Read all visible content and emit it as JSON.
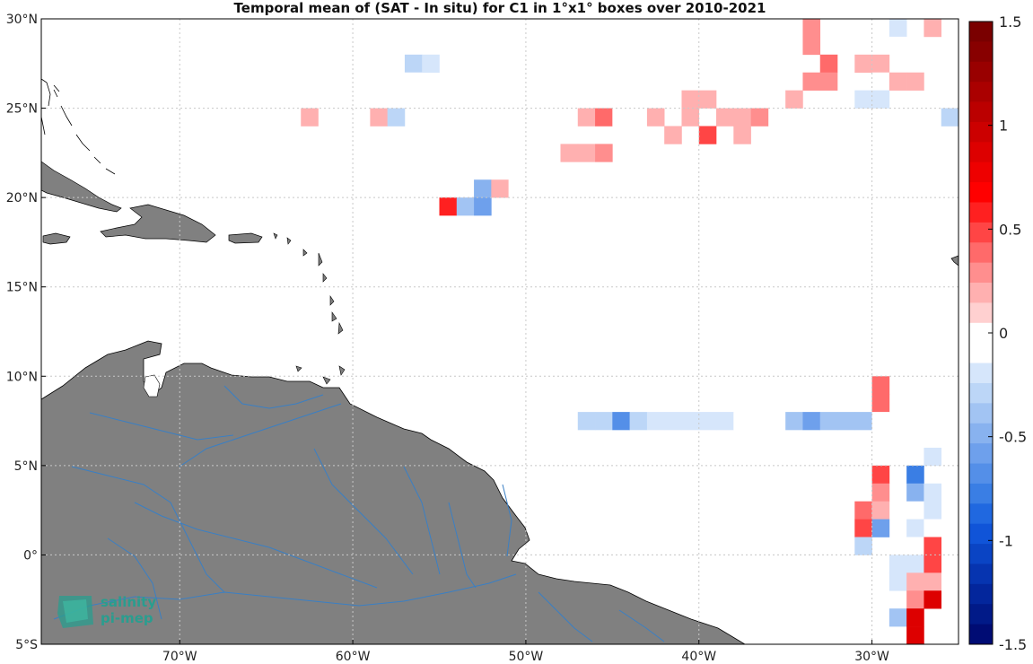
{
  "title": "Temporal mean of (SAT - In situ) for C1 in 1°x1° boxes over 2010-2021",
  "logo": {
    "line1": "salinity",
    "line2": "pi-mep"
  },
  "map": {
    "lon_range": [
      -78,
      -25
    ],
    "lat_range": [
      -5,
      30
    ],
    "lat_ticks": [
      {
        "value": 30,
        "label": "30°N"
      },
      {
        "value": 25,
        "label": "25°N"
      },
      {
        "value": 20,
        "label": "20°N"
      },
      {
        "value": 15,
        "label": "15°N"
      },
      {
        "value": 10,
        "label": "10°N"
      },
      {
        "value": 5,
        "label": "5°N"
      },
      {
        "value": 0,
        "label": "0°"
      },
      {
        "value": -5,
        "label": "5°S"
      }
    ],
    "lon_ticks": [
      {
        "value": -70,
        "label": "70°W"
      },
      {
        "value": -60,
        "label": "60°W"
      },
      {
        "value": -50,
        "label": "50°W"
      },
      {
        "value": -40,
        "label": "40°W"
      },
      {
        "value": -30,
        "label": "30°W"
      }
    ],
    "grid": true,
    "land_color": "#808080",
    "river_color": "#3a7fc4"
  },
  "colorbar": {
    "range": [
      -1.5,
      1.5
    ],
    "ticks": [
      {
        "value": 1.5,
        "label": "1.5"
      },
      {
        "value": 1,
        "label": "1"
      },
      {
        "value": 0.5,
        "label": "0.5"
      },
      {
        "value": 0,
        "label": "0"
      },
      {
        "value": -0.5,
        "label": "-0.5"
      },
      {
        "value": -1,
        "label": "-1"
      },
      {
        "value": -1.5,
        "label": "-1.5"
      }
    ],
    "colors_top_to_bottom": [
      "#7a0000",
      "#880000",
      "#990000",
      "#aa0000",
      "#bb0000",
      "#cc0000",
      "#dd0000",
      "#ee0000",
      "#ff0000",
      "#ff2020",
      "#ff4545",
      "#ff6a6a",
      "#ff8e8e",
      "#ffb0b0",
      "#ffd0d0",
      "#ffffff",
      "#ffffff",
      "#d6e6fb",
      "#bcd6f7",
      "#a2c4f3",
      "#88b2ef",
      "#6ea0ec",
      "#548fe8",
      "#3a7ee4",
      "#2068e0",
      "#1054d8",
      "#0a44c4",
      "#0634b0",
      "#03269c",
      "#011a88",
      "#000c74"
    ]
  },
  "chart_data": {
    "type": "heatmap",
    "description_units": "lon/lat box centers in degrees, value = SAT - In situ (psu)",
    "cells": [
      {
        "lon": -33.5,
        "lat": 29.5,
        "v": 0.25
      },
      {
        "lon": -28.5,
        "lat": 29.5,
        "v": -0.2
      },
      {
        "lon": -26.5,
        "lat": 29.5,
        "v": 0.15
      },
      {
        "lon": -33.5,
        "lat": 28.5,
        "v": 0.25
      },
      {
        "lon": -28.5,
        "lat": 28.5,
        "v": -0.1
      },
      {
        "lon": -56.5,
        "lat": 27.5,
        "v": -0.25
      },
      {
        "lon": -55.5,
        "lat": 27.5,
        "v": -0.15
      },
      {
        "lon": -32.5,
        "lat": 27.5,
        "v": 0.4
      },
      {
        "lon": -30.5,
        "lat": 27.5,
        "v": 0.15
      },
      {
        "lon": -29.5,
        "lat": 27.5,
        "v": 0.15
      },
      {
        "lon": -57.5,
        "lat": 26.5,
        "v": -0.1
      },
      {
        "lon": -56.5,
        "lat": 26.5,
        "v": -0.1
      },
      {
        "lon": -35.5,
        "lat": 26.5,
        "v": -0.1
      },
      {
        "lon": -33.5,
        "lat": 26.5,
        "v": 0.25
      },
      {
        "lon": -32.5,
        "lat": 26.5,
        "v": 0.25
      },
      {
        "lon": -29.5,
        "lat": 26.5,
        "v": -0.1
      },
      {
        "lon": -28.5,
        "lat": 26.5,
        "v": 0.15
      },
      {
        "lon": -27.5,
        "lat": 26.5,
        "v": 0.15
      },
      {
        "lon": -40.5,
        "lat": 25.5,
        "v": 0.15
      },
      {
        "lon": -39.5,
        "lat": 25.5,
        "v": 0.15
      },
      {
        "lon": -34.5,
        "lat": 25.5,
        "v": 0.15
      },
      {
        "lon": -30.5,
        "lat": 25.5,
        "v": -0.2
      },
      {
        "lon": -29.5,
        "lat": 25.5,
        "v": -0.2
      },
      {
        "lon": -62.5,
        "lat": 24.5,
        "v": 0.15
      },
      {
        "lon": -58.5,
        "lat": 24.5,
        "v": 0.15
      },
      {
        "lon": -57.5,
        "lat": 24.5,
        "v": -0.25
      },
      {
        "lon": -51.5,
        "lat": 24.5,
        "v": -0.1
      },
      {
        "lon": -50.5,
        "lat": 24.5,
        "v": -0.1
      },
      {
        "lon": -49.5,
        "lat": 24.5,
        "v": -0.1
      },
      {
        "lon": -48.5,
        "lat": 24.5,
        "v": -0.1
      },
      {
        "lon": -46.5,
        "lat": 24.5,
        "v": 0.15
      },
      {
        "lon": -45.5,
        "lat": 24.5,
        "v": 0.4
      },
      {
        "lon": -44.5,
        "lat": 24.5,
        "v": -0.1
      },
      {
        "lon": -42.5,
        "lat": 24.5,
        "v": 0.15
      },
      {
        "lon": -40.5,
        "lat": 24.5,
        "v": 0.15
      },
      {
        "lon": -38.5,
        "lat": 24.5,
        "v": 0.15
      },
      {
        "lon": -37.5,
        "lat": 24.5,
        "v": 0.15
      },
      {
        "lon": -36.5,
        "lat": 24.5,
        "v": 0.25
      },
      {
        "lon": -25.5,
        "lat": 24.5,
        "v": -0.25
      },
      {
        "lon": -43.5,
        "lat": 23.5,
        "v": -0.1
      },
      {
        "lon": -41.5,
        "lat": 23.5,
        "v": 0.15
      },
      {
        "lon": -39.5,
        "lat": 23.5,
        "v": 0.45
      },
      {
        "lon": -37.5,
        "lat": 23.5,
        "v": 0.15
      },
      {
        "lon": -47.5,
        "lat": 22.5,
        "v": 0.15
      },
      {
        "lon": -46.5,
        "lat": 22.5,
        "v": 0.15
      },
      {
        "lon": -45.5,
        "lat": 22.5,
        "v": 0.3
      },
      {
        "lon": -50.5,
        "lat": 21.5,
        "v": -0.1
      },
      {
        "lon": -52.5,
        "lat": 20.5,
        "v": -0.5
      },
      {
        "lon": -51.5,
        "lat": 20.5,
        "v": 0.15
      },
      {
        "lon": -50.5,
        "lat": 20.5,
        "v": -0.1
      },
      {
        "lon": -54.5,
        "lat": 19.5,
        "v": 0.6
      },
      {
        "lon": -53.5,
        "lat": 19.5,
        "v": -0.4
      },
      {
        "lon": -52.5,
        "lat": 19.5,
        "v": -0.55
      },
      {
        "lon": -29.5,
        "lat": 9.5,
        "v": 0.35
      },
      {
        "lon": -29.5,
        "lat": 8.5,
        "v": 0.35
      },
      {
        "lon": -46.5,
        "lat": 7.5,
        "v": -0.3
      },
      {
        "lon": -45.5,
        "lat": 7.5,
        "v": -0.3
      },
      {
        "lon": -44.5,
        "lat": 7.5,
        "v": -0.7
      },
      {
        "lon": -43.5,
        "lat": 7.5,
        "v": -0.3
      },
      {
        "lon": -42.5,
        "lat": 7.5,
        "v": -0.2
      },
      {
        "lon": -41.5,
        "lat": 7.5,
        "v": -0.2
      },
      {
        "lon": -40.5,
        "lat": 7.5,
        "v": -0.2
      },
      {
        "lon": -39.5,
        "lat": 7.5,
        "v": -0.2
      },
      {
        "lon": -38.5,
        "lat": 7.5,
        "v": -0.2
      },
      {
        "lon": -37.5,
        "lat": 7.5,
        "v": -0.1
      },
      {
        "lon": -36.5,
        "lat": 7.5,
        "v": -0.1
      },
      {
        "lon": -34.5,
        "lat": 7.5,
        "v": -0.35
      },
      {
        "lon": -33.5,
        "lat": 7.5,
        "v": -0.55
      },
      {
        "lon": -32.5,
        "lat": 7.5,
        "v": -0.35
      },
      {
        "lon": -31.5,
        "lat": 7.5,
        "v": -0.35
      },
      {
        "lon": -30.5,
        "lat": 7.5,
        "v": -0.35
      },
      {
        "lon": -29.5,
        "lat": 7.5,
        "v": -0.1
      },
      {
        "lon": -26.5,
        "lat": 6.5,
        "v": -0.1
      },
      {
        "lon": -26.5,
        "lat": 5.5,
        "v": -0.2
      },
      {
        "lon": -29.5,
        "lat": 4.5,
        "v": 0.45
      },
      {
        "lon": -27.5,
        "lat": 4.5,
        "v": -0.8
      },
      {
        "lon": -29.5,
        "lat": 3.5,
        "v": 0.3
      },
      {
        "lon": -27.5,
        "lat": 3.5,
        "v": -0.5
      },
      {
        "lon": -26.5,
        "lat": 3.5,
        "v": -0.2
      },
      {
        "lon": -30.5,
        "lat": 2.5,
        "v": 0.35
      },
      {
        "lon": -29.5,
        "lat": 2.5,
        "v": 0.15
      },
      {
        "lon": -27.5,
        "lat": 2.5,
        "v": -0.1
      },
      {
        "lon": -26.5,
        "lat": 2.5,
        "v": -0.2
      },
      {
        "lon": -30.5,
        "lat": 1.5,
        "v": 0.45
      },
      {
        "lon": -29.5,
        "lat": 1.5,
        "v": -0.6
      },
      {
        "lon": -27.5,
        "lat": 1.5,
        "v": -0.2
      },
      {
        "lon": -26.5,
        "lat": 1.5,
        "v": -0.1
      },
      {
        "lon": -30.5,
        "lat": 0.5,
        "v": -0.25
      },
      {
        "lon": -27.5,
        "lat": 0.5,
        "v": -0.1
      },
      {
        "lon": -26.5,
        "lat": 0.5,
        "v": 0.45
      },
      {
        "lon": -28.5,
        "lat": -0.5,
        "v": -0.15
      },
      {
        "lon": -27.5,
        "lat": -0.5,
        "v": -0.15
      },
      {
        "lon": -26.5,
        "lat": -0.5,
        "v": 0.5
      },
      {
        "lon": -28.5,
        "lat": -1.5,
        "v": -0.15
      },
      {
        "lon": -27.5,
        "lat": -1.5,
        "v": 0.15
      },
      {
        "lon": -26.5,
        "lat": -1.5,
        "v": 0.15
      },
      {
        "lon": -27.5,
        "lat": -2.5,
        "v": 0.3
      },
      {
        "lon": -26.5,
        "lat": -2.5,
        "v": 0.9
      },
      {
        "lon": -28.5,
        "lat": -3.5,
        "v": -0.35
      },
      {
        "lon": -27.5,
        "lat": -3.5,
        "v": 0.85
      },
      {
        "lon": -27.5,
        "lat": -4.5,
        "v": 0.85
      }
    ]
  }
}
